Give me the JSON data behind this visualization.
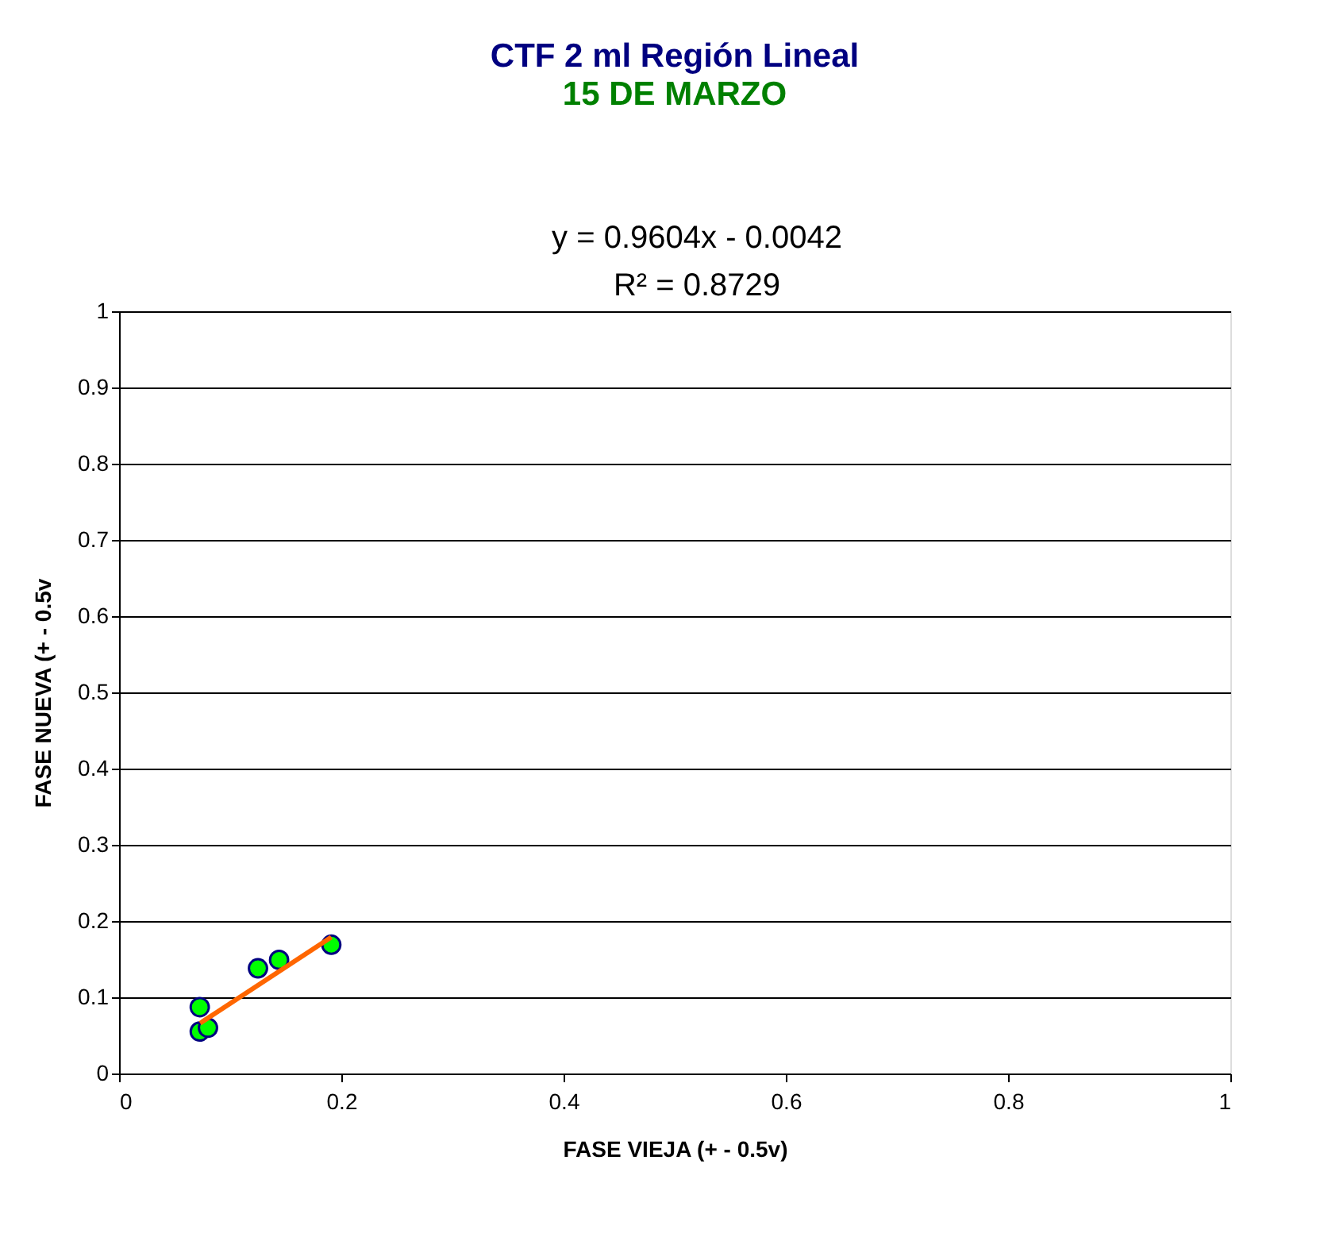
{
  "chart_data": {
    "type": "scatter",
    "title": "CTF 2 ml       Región Lineal",
    "subtitle": "15 DE MARZO",
    "xlabel": "FASE VIEJA (+ - 0.5v)",
    "ylabel": "FASE NUEVA (+ - 0.5v",
    "annotations": [
      "y = 0.9604x - 0.0042",
      "R² = 0.8729"
    ],
    "x": [
      0.0726,
      0.0726,
      0.08,
      0.125,
      0.144,
      0.191
    ],
    "series": [
      {
        "color": "#00ff00",
        "marker": "circle",
        "values": [
          0.087,
          0.055,
          0.06,
          0.138,
          0.149,
          0.169
        ]
      },
      {
        "type": "line",
        "color": "#ff6600",
        "x": [
          0.073,
          0.191
        ],
        "values": [
          0.066,
          0.179
        ]
      }
    ],
    "xlim": [
      0,
      1
    ],
    "ylim": [
      0,
      1
    ],
    "xticks": [
      0,
      0.2,
      0.4,
      0.6,
      0.8,
      1
    ],
    "yticks": [
      0,
      0.1,
      0.2,
      0.3,
      0.4,
      0.5,
      0.6,
      0.7,
      0.8,
      0.9,
      1
    ],
    "grid": "y",
    "legend": false
  }
}
